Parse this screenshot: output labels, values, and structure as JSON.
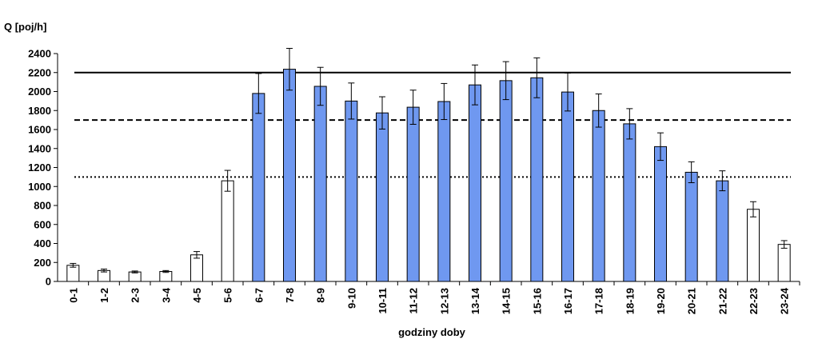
{
  "chart_data": {
    "type": "bar",
    "title": "",
    "ylabel": "Q [poj/h]",
    "xlabel": "godziny doby",
    "ylim": [
      0,
      2400
    ],
    "yticks": [
      0,
      200,
      400,
      600,
      800,
      1000,
      1200,
      1400,
      1600,
      1800,
      2000,
      2200,
      2400
    ],
    "grid": false,
    "categories": [
      "0-1",
      "1-2",
      "2-3",
      "3-4",
      "4-5",
      "5-6",
      "6-7",
      "7-8",
      "8-9",
      "9-10",
      "10-11",
      "11-12",
      "12-13",
      "13-14",
      "14-15",
      "15-16",
      "16-17",
      "17-18",
      "18-19",
      "19-20",
      "20-21",
      "21-22",
      "22-23",
      "23-24"
    ],
    "values": [
      170,
      115,
      100,
      105,
      280,
      1060,
      1980,
      2235,
      2055,
      1900,
      1775,
      1835,
      1895,
      2070,
      2115,
      2145,
      1995,
      1800,
      1660,
      1420,
      1150,
      1060,
      760,
      390
    ],
    "error": [
      20,
      15,
      10,
      10,
      35,
      110,
      210,
      220,
      200,
      190,
      170,
      180,
      190,
      210,
      200,
      210,
      200,
      175,
      160,
      145,
      110,
      105,
      80,
      40
    ],
    "highlighted": [
      false,
      false,
      false,
      false,
      false,
      false,
      true,
      true,
      true,
      true,
      true,
      true,
      true,
      true,
      true,
      true,
      true,
      true,
      true,
      true,
      true,
      true,
      false,
      false
    ],
    "reference_lines": [
      {
        "value": 2200,
        "style": "solid"
      },
      {
        "value": 1700,
        "style": "dashed"
      },
      {
        "value": 1100,
        "style": "dotted"
      }
    ],
    "colors": {
      "highlight_fill": "#6f98f0",
      "default_fill": "#ffffff",
      "bar_stroke": "#000000"
    }
  }
}
